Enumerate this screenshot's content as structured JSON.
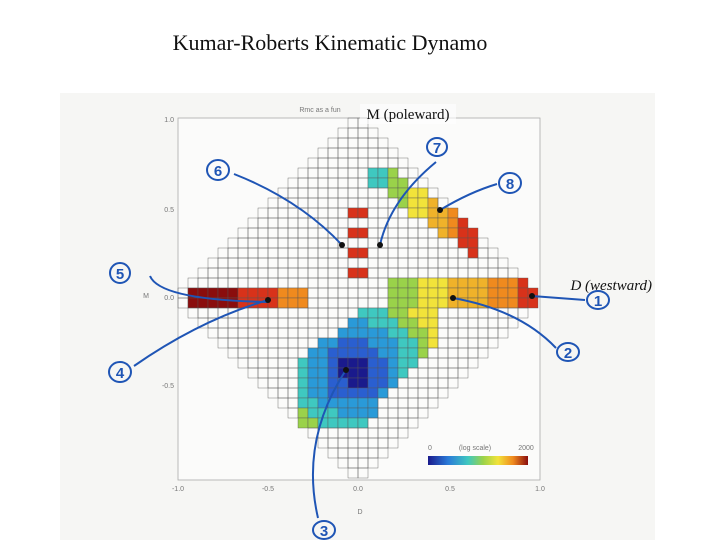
{
  "title": "Kumar-Roberts Kinematic Dynamo",
  "labels": {
    "m_axis": "M (poleward)",
    "d_axis": "D (westward)"
  },
  "figure": {
    "caption": "Rmc as a fun",
    "x_ticks": [
      "-1.0",
      "-0.5",
      "0.0",
      "0.5",
      "1.0"
    ],
    "y_ticks": [
      "1.0",
      "0.5",
      "0.0",
      "-0.5"
    ],
    "x_axis_label": "D",
    "y_axis_label": "M",
    "colorbar": {
      "min": "0",
      "scale": "(log scale)",
      "max": "2000"
    }
  },
  "markers": [
    "1",
    "2",
    "3",
    "4",
    "5",
    "6",
    "7",
    "8"
  ]
}
